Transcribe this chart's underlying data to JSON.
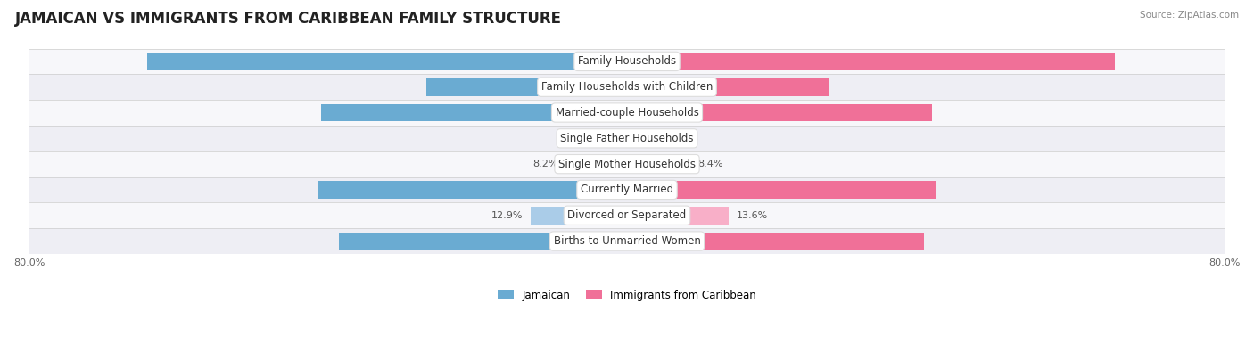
{
  "title": "JAMAICAN VS IMMIGRANTS FROM CARIBBEAN FAMILY STRUCTURE",
  "source": "Source: ZipAtlas.com",
  "categories": [
    "Family Households",
    "Family Households with Children",
    "Married-couple Households",
    "Single Father Households",
    "Single Mother Households",
    "Currently Married",
    "Divorced or Separated",
    "Births to Unmarried Women"
  ],
  "jamaican_values": [
    64.2,
    26.9,
    40.9,
    2.3,
    8.2,
    41.4,
    12.9,
    38.5
  ],
  "caribbean_values": [
    65.3,
    27.0,
    40.8,
    2.5,
    8.4,
    41.3,
    13.6,
    39.8
  ],
  "max_value": 80.0,
  "jamaican_color": "#6aabd2",
  "jamaican_color_light": "#aacce8",
  "caribbean_color": "#f07098",
  "caribbean_color_light": "#f8afc8",
  "row_colors": [
    "#f7f7fa",
    "#eeeef4"
  ],
  "label_font_size": 8.5,
  "title_font_size": 12,
  "value_font_size": 8,
  "inside_threshold": 15,
  "legend_labels": [
    "Jamaican",
    "Immigrants from Caribbean"
  ]
}
